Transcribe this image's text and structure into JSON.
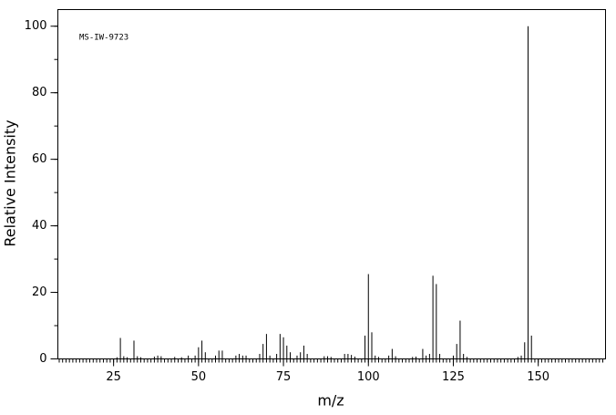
{
  "chart_data": {
    "type": "bar",
    "title": "MS-IW-9723",
    "x_label": "m/z",
    "y_label": "Relative Intensity",
    "x": [
      26,
      27,
      28,
      29,
      31,
      32,
      33,
      37,
      38,
      39,
      43,
      45,
      47,
      49,
      50,
      51,
      52,
      55,
      56,
      57,
      61,
      62,
      63,
      64,
      68,
      69,
      70,
      71,
      73,
      74,
      75,
      76,
      77,
      79,
      80,
      81,
      82,
      87,
      88,
      89,
      93,
      94,
      95,
      96,
      99,
      100,
      101,
      102,
      103,
      106,
      107,
      108,
      113,
      114,
      116,
      117,
      118,
      119,
      120,
      121,
      125,
      126,
      127,
      128,
      129,
      144,
      145,
      146,
      147,
      148
    ],
    "values": [
      0.5,
      6.3,
      0.8,
      0.5,
      5.5,
      0.8,
      0.5,
      0.7,
      1,
      0.8,
      0.6,
      0.5,
      1,
      1,
      3.5,
      5.5,
      2,
      1,
      2.5,
      2.5,
      1,
      1.5,
      1,
      1,
      1.5,
      4.5,
      7.5,
      1,
      1.5,
      7.5,
      6.5,
      4,
      2,
      1,
      2,
      4,
      1.5,
      0.8,
      0.8,
      0.6,
      1.5,
      1.5,
      1.2,
      0.7,
      7,
      25.5,
      8,
      1,
      0.6,
      1,
      3,
      0.8,
      0.6,
      0.7,
      3,
      1,
      1.5,
      25,
      22.5,
      1.5,
      1,
      4.5,
      11.5,
      1.5,
      0.6,
      0.6,
      1,
      5,
      100,
      7
    ],
    "color": "#000000",
    "xlim": [
      8.6,
      169.8
    ],
    "xticks": [
      25,
      50,
      75,
      100,
      125,
      150
    ],
    "x_minor_step": 1,
    "ylim": [
      0,
      105
    ],
    "yticks": [
      0,
      20,
      40,
      60,
      80,
      100
    ],
    "y_minor_step": 10
  }
}
